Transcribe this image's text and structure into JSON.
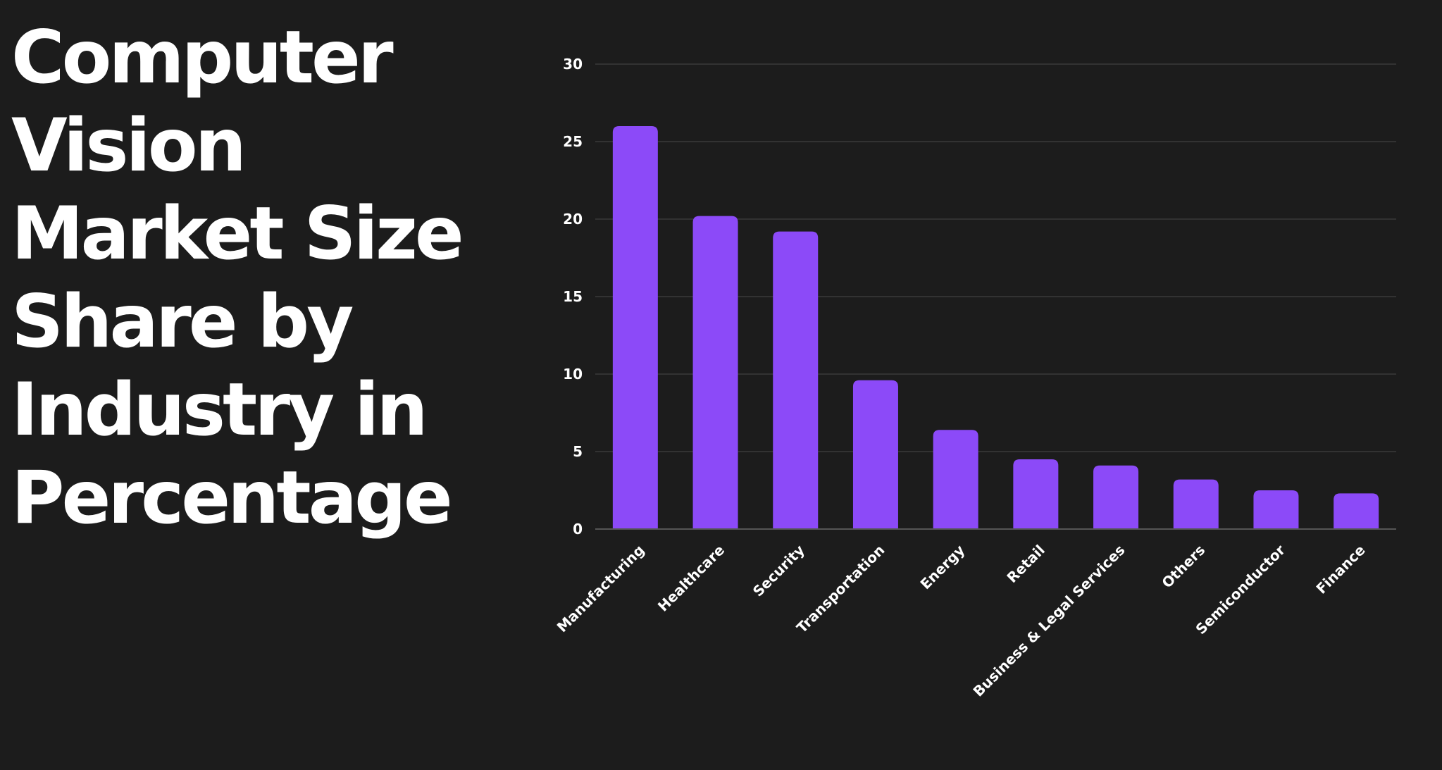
{
  "title_lines": [
    "Computer",
    "Vision",
    "Market Size",
    "Share by",
    "Industry in",
    "Percentage"
  ],
  "colors": {
    "background": "#1c1c1c",
    "bar": "#8c4af8",
    "gridline": "#3a3a3a",
    "axis": "#555555",
    "text": "#ffffff"
  },
  "chart_data": {
    "type": "bar",
    "title": "Computer Vision Market Size Share by Industry in Percentage",
    "xlabel": "",
    "ylabel": "",
    "categories": [
      "Manufacturing",
      "Healthcare",
      "Security",
      "Transportation",
      "Energy",
      "Retail",
      "Business & Legal Services",
      "Others",
      "Semiconductor",
      "Finance"
    ],
    "values": [
      26,
      20.2,
      19.2,
      9.6,
      6.4,
      4.5,
      4.1,
      3.2,
      2.5,
      2.3
    ],
    "ylim": [
      0,
      30
    ],
    "yticks": [
      0,
      5,
      10,
      15,
      20,
      25,
      30
    ],
    "grid": true,
    "legend": "none"
  }
}
